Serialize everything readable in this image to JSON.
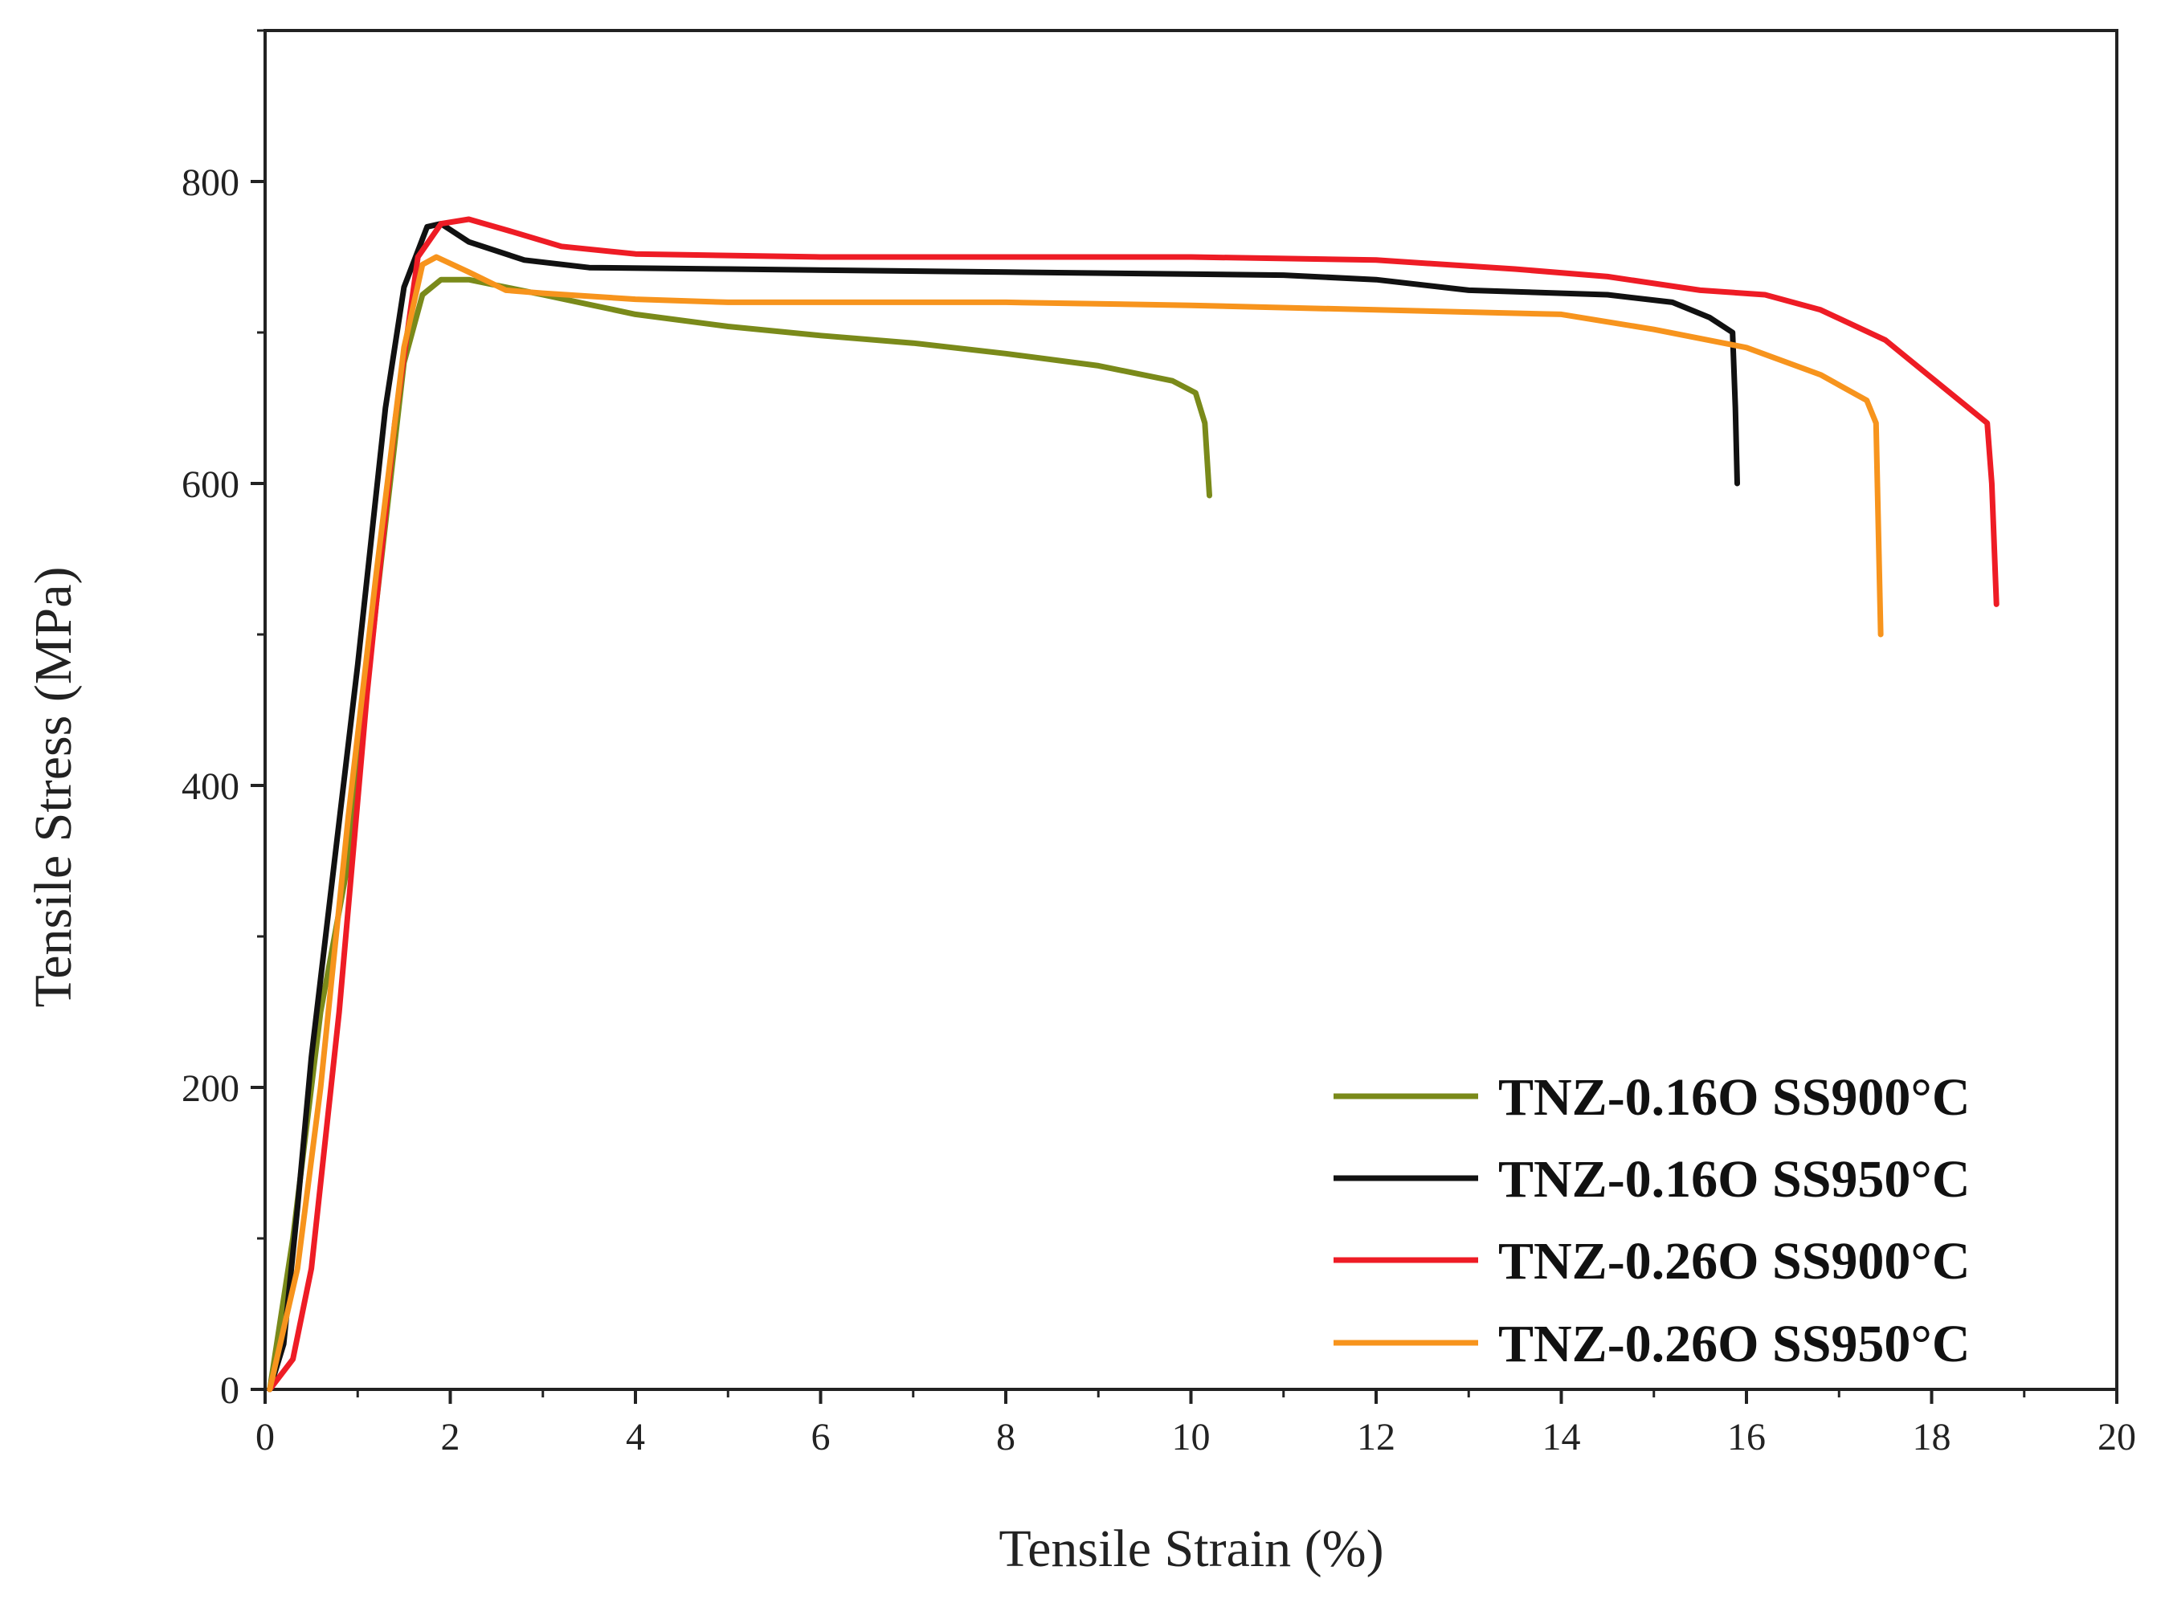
{
  "chart_data": {
    "type": "line",
    "title": "",
    "xlabel": "Tensile Strain (%)",
    "ylabel": "Tensile Stress (MPa)",
    "xlim": [
      0,
      20
    ],
    "ylim": [
      0,
      900
    ],
    "xticks": [
      "0",
      "2",
      "4",
      "6",
      "8",
      "10",
      "12",
      "14",
      "16",
      "18",
      "20"
    ],
    "yticks": [
      "0",
      "200",
      "400",
      "600",
      "800"
    ],
    "grid": false,
    "legend_position": "bottom-right",
    "series": [
      {
        "name": "TNZ-0.16O SS900°C",
        "color": "#7a8a1a",
        "points": [
          [
            0.05,
            0
          ],
          [
            0.3,
            100
          ],
          [
            0.6,
            250
          ],
          [
            0.9,
            350
          ],
          [
            1.2,
            520
          ],
          [
            1.5,
            680
          ],
          [
            1.7,
            725
          ],
          [
            1.9,
            735
          ],
          [
            2.2,
            735
          ],
          [
            3,
            725
          ],
          [
            4,
            712
          ],
          [
            5,
            704
          ],
          [
            6,
            698
          ],
          [
            7,
            693
          ],
          [
            8,
            686
          ],
          [
            9,
            678
          ],
          [
            9.8,
            668
          ],
          [
            10.05,
            660
          ],
          [
            10.15,
            640
          ],
          [
            10.2,
            592
          ]
        ]
      },
      {
        "name": "TNZ-0.16O SS950°C",
        "color": "#111111",
        "points": [
          [
            0.05,
            0
          ],
          [
            0.2,
            30
          ],
          [
            0.35,
            120
          ],
          [
            0.5,
            220
          ],
          [
            0.75,
            350
          ],
          [
            1,
            480
          ],
          [
            1.3,
            650
          ],
          [
            1.5,
            730
          ],
          [
            1.75,
            770
          ],
          [
            1.9,
            772
          ],
          [
            2.2,
            760
          ],
          [
            2.8,
            748
          ],
          [
            3.5,
            743
          ],
          [
            5,
            742
          ],
          [
            8,
            740
          ],
          [
            11,
            738
          ],
          [
            12,
            735
          ],
          [
            13,
            728
          ],
          [
            14.5,
            725
          ],
          [
            15.2,
            720
          ],
          [
            15.6,
            710
          ],
          [
            15.85,
            700
          ],
          [
            15.88,
            650
          ],
          [
            15.9,
            600
          ]
        ]
      },
      {
        "name": "TNZ-0.26O SS900°C",
        "color": "#ee1c25",
        "points": [
          [
            0.05,
            0
          ],
          [
            0.3,
            20
          ],
          [
            0.5,
            80
          ],
          [
            0.8,
            250
          ],
          [
            1.1,
            460
          ],
          [
            1.4,
            640
          ],
          [
            1.65,
            750
          ],
          [
            1.9,
            772
          ],
          [
            2.2,
            775
          ],
          [
            2.6,
            768
          ],
          [
            3.2,
            757
          ],
          [
            4,
            752
          ],
          [
            6,
            750
          ],
          [
            8,
            750
          ],
          [
            10,
            750
          ],
          [
            12,
            748
          ],
          [
            13.5,
            742
          ],
          [
            14.5,
            737
          ],
          [
            15.5,
            728
          ],
          [
            16.2,
            725
          ],
          [
            16.8,
            715
          ],
          [
            17.5,
            695
          ],
          [
            18,
            670
          ],
          [
            18.4,
            650
          ],
          [
            18.6,
            640
          ],
          [
            18.65,
            600
          ],
          [
            18.7,
            520
          ]
        ]
      },
      {
        "name": "TNZ-0.26O SS950°C",
        "color": "#f7941d",
        "points": [
          [
            0.05,
            0
          ],
          [
            0.35,
            80
          ],
          [
            0.6,
            200
          ],
          [
            0.9,
            380
          ],
          [
            1.2,
            540
          ],
          [
            1.5,
            690
          ],
          [
            1.7,
            745
          ],
          [
            1.85,
            750
          ],
          [
            2.2,
            740
          ],
          [
            2.6,
            728
          ],
          [
            3,
            726
          ],
          [
            4,
            722
          ],
          [
            5,
            720
          ],
          [
            6,
            720
          ],
          [
            8,
            720
          ],
          [
            10,
            718
          ],
          [
            12,
            715
          ],
          [
            14,
            712
          ],
          [
            15,
            702
          ],
          [
            16,
            690
          ],
          [
            16.8,
            672
          ],
          [
            17.3,
            655
          ],
          [
            17.4,
            640
          ],
          [
            17.45,
            500
          ]
        ]
      }
    ]
  }
}
